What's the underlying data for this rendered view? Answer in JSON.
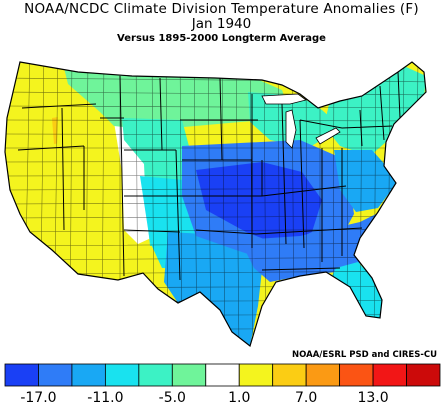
{
  "header": {
    "title_line1": "NOAA/NCDC Climate Division Temperature Anomalies (F)",
    "title_line2": "Jan 1940",
    "subtitle": "Versus 1895-2000 Longterm Average"
  },
  "credit": "NOAA/ESRL PSD and CIRES-CU",
  "legend": {
    "colors": [
      "#1a40f5",
      "#2f7cf7",
      "#19a8f4",
      "#19e2ef",
      "#3cf2c5",
      "#6ff49a",
      "#ffffff",
      "#f4f41e",
      "#fbcd14",
      "#fb9a14",
      "#fb5414",
      "#f21616",
      "#cc0a0a"
    ],
    "tick_labels": [
      "-17.0",
      "-11.0",
      "-5.0",
      "1.0",
      "7.0",
      "13.0"
    ]
  },
  "regions": [
    {
      "name": "pacific-coast",
      "color": "#f4f41e"
    },
    {
      "name": "oregon-warm-pocket",
      "color": "#fbcd14"
    },
    {
      "name": "great-basin",
      "color": "#f4f41e"
    },
    {
      "name": "southwest",
      "color": "#f4f41e"
    },
    {
      "name": "intermountain",
      "color": "#ffffff"
    },
    {
      "name": "northern-tier",
      "color": "#6ff49a"
    },
    {
      "name": "rockies",
      "color": "#3cf2c5"
    },
    {
      "name": "high-plains",
      "color": "#19e2ef"
    },
    {
      "name": "texas",
      "color": "#19a8f4"
    },
    {
      "name": "great-lakes",
      "color": "#3cf2c5"
    },
    {
      "name": "central-plains",
      "color": "#2f7cf7"
    },
    {
      "name": "midwest-core",
      "color": "#1a40f5"
    },
    {
      "name": "southeast",
      "color": "#2f7cf7"
    },
    {
      "name": "florida",
      "color": "#19e2ef"
    },
    {
      "name": "northeast",
      "color": "#3cf2c5"
    },
    {
      "name": "mid-atlantic",
      "color": "#19a8f4"
    }
  ]
}
